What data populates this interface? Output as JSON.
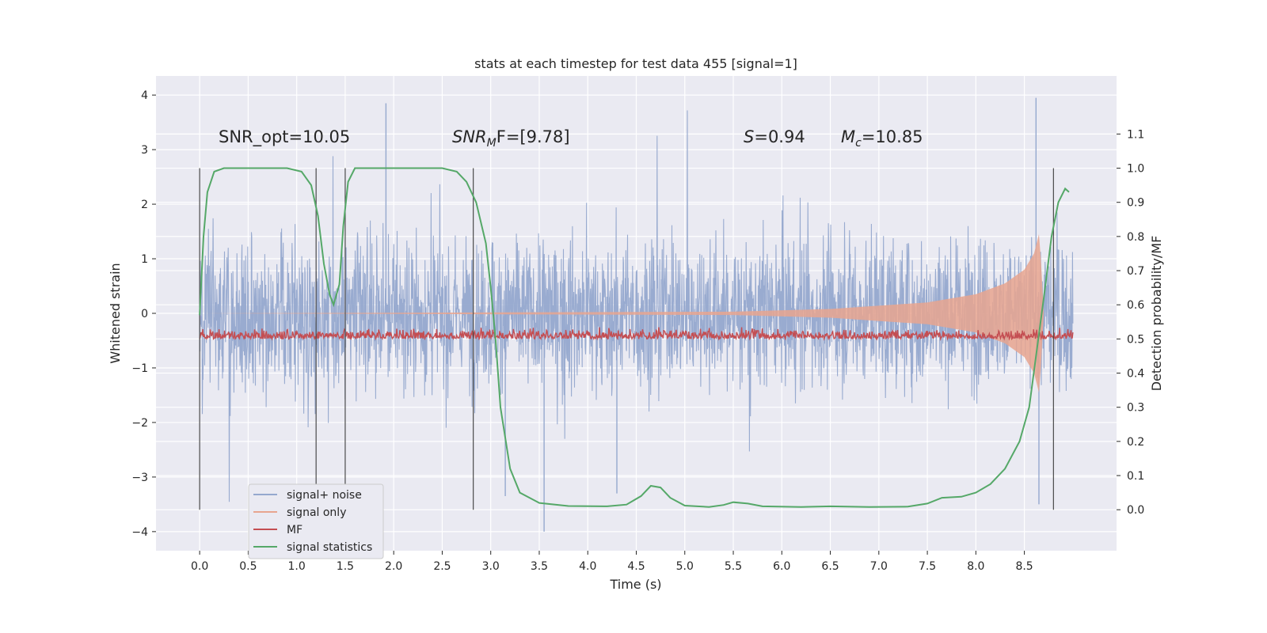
{
  "chart_data": {
    "type": "line",
    "title": "stats at each timestep for test data 455 [signal=1]",
    "xlabel": "Time (s)",
    "ylabel": "Whitened strain",
    "ylabel_right": "Detection probability/MF",
    "xlim": [
      -0.45,
      9.45
    ],
    "ylim": [
      -4.35,
      4.35
    ],
    "ylim_right": [
      -0.12,
      1.27
    ],
    "x_ticks": [
      "0.0",
      "0.5",
      "1.0",
      "1.5",
      "2.0",
      "2.5",
      "3.0",
      "3.5",
      "4.0",
      "4.5",
      "5.0",
      "5.5",
      "6.0",
      "6.5",
      "7.0",
      "7.5",
      "8.0",
      "8.5"
    ],
    "y_ticks": [
      "4",
      "3",
      "2",
      "1",
      "0",
      "−1",
      "−2",
      "−3",
      "−4"
    ],
    "y_ticks_right": [
      "1.1",
      "1.0",
      "0.9",
      "0.8",
      "0.7",
      "0.6",
      "0.5",
      "0.4",
      "0.3",
      "0.2",
      "0.1",
      "0.0"
    ],
    "grid": true,
    "legend_position": "lower-left",
    "annotations": {
      "snr_opt": "SNR_opt=10.05",
      "snr_mf_main": "SNR",
      "snr_mf_sub": "M",
      "snr_mf_rest": "F=[9.78]",
      "s_main": "S",
      "s_rest": "=0.94",
      "mc_main": "M",
      "mc_sub": "c",
      "mc_rest": "=10.85"
    },
    "vertical_markers": [
      0.0,
      1.2,
      1.5,
      2.82,
      8.8
    ],
    "series": [
      {
        "name": "signal+ noise",
        "color": "#95a8ce",
        "axis": "left",
        "description_values": {
          "t_start": 0.0,
          "t_end": 9.0,
          "envelope_typical": [
            -1.3,
            1.3
          ],
          "peaks_max": 3.95,
          "peaks_min": -4.0
        }
      },
      {
        "name": "signal only",
        "color": "#e8a58f",
        "axis": "left",
        "points": [
          [
            0.0,
            0.0
          ],
          [
            5.5,
            0.03
          ],
          [
            6.5,
            0.08
          ],
          [
            7.5,
            0.2
          ],
          [
            8.0,
            0.35
          ],
          [
            8.3,
            0.55
          ],
          [
            8.5,
            0.8
          ],
          [
            8.6,
            1.1
          ],
          [
            8.65,
            1.45
          ],
          [
            8.67,
            1.0
          ],
          [
            8.7,
            0.0
          ]
        ]
      },
      {
        "name": "MF",
        "color": "#c44e52",
        "axis": "right",
        "description_values": {
          "t_start": 0.0,
          "t_end": 9.0,
          "baseline": 0.5,
          "range": [
            0.5,
            0.56
          ]
        }
      },
      {
        "name": "signal statistics",
        "color": "#55a868",
        "axis": "right",
        "points": [
          [
            0.0,
            0.57
          ],
          [
            0.04,
            0.8
          ],
          [
            0.08,
            0.93
          ],
          [
            0.15,
            0.99
          ],
          [
            0.25,
            1.0
          ],
          [
            0.9,
            1.0
          ],
          [
            1.05,
            0.99
          ],
          [
            1.15,
            0.95
          ],
          [
            1.22,
            0.86
          ],
          [
            1.28,
            0.72
          ],
          [
            1.34,
            0.63
          ],
          [
            1.38,
            0.6
          ],
          [
            1.44,
            0.66
          ],
          [
            1.48,
            0.83
          ],
          [
            1.53,
            0.96
          ],
          [
            1.6,
            1.0
          ],
          [
            2.5,
            1.0
          ],
          [
            2.65,
            0.99
          ],
          [
            2.75,
            0.96
          ],
          [
            2.85,
            0.9
          ],
          [
            2.95,
            0.78
          ],
          [
            3.0,
            0.65
          ],
          [
            3.05,
            0.5
          ],
          [
            3.1,
            0.3
          ],
          [
            3.2,
            0.12
          ],
          [
            3.3,
            0.05
          ],
          [
            3.5,
            0.02
          ],
          [
            3.8,
            0.011
          ],
          [
            4.2,
            0.01
          ],
          [
            4.4,
            0.015
          ],
          [
            4.55,
            0.04
          ],
          [
            4.65,
            0.07
          ],
          [
            4.75,
            0.065
          ],
          [
            4.85,
            0.035
          ],
          [
            5.0,
            0.012
          ],
          [
            5.25,
            0.008
          ],
          [
            5.4,
            0.014
          ],
          [
            5.5,
            0.022
          ],
          [
            5.65,
            0.018
          ],
          [
            5.8,
            0.01
          ],
          [
            6.2,
            0.008
          ],
          [
            6.5,
            0.01
          ],
          [
            6.9,
            0.008
          ],
          [
            7.3,
            0.009
          ],
          [
            7.5,
            0.018
          ],
          [
            7.65,
            0.035
          ],
          [
            7.85,
            0.038
          ],
          [
            8.0,
            0.05
          ],
          [
            8.15,
            0.075
          ],
          [
            8.3,
            0.12
          ],
          [
            8.45,
            0.2
          ],
          [
            8.55,
            0.3
          ],
          [
            8.62,
            0.45
          ],
          [
            8.7,
            0.62
          ],
          [
            8.78,
            0.8
          ],
          [
            8.85,
            0.9
          ],
          [
            8.92,
            0.94
          ],
          [
            8.96,
            0.93
          ]
        ]
      }
    ]
  },
  "colors": {
    "plot_background": "#eaeaf2",
    "grid": "#ffffff",
    "marker_line": "#4a4a4a"
  }
}
